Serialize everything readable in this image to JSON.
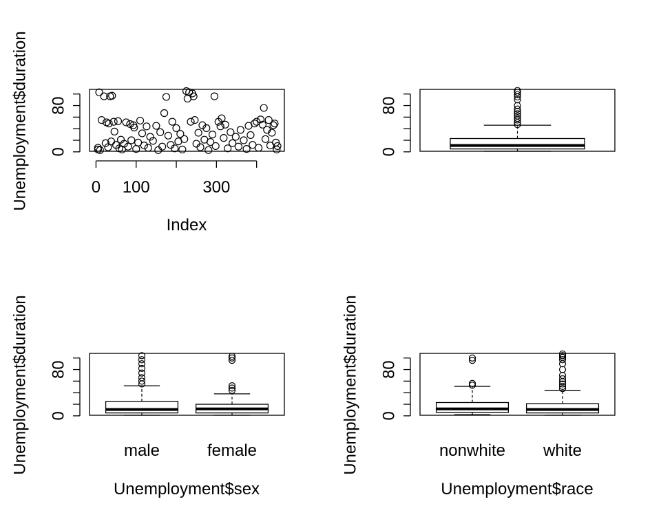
{
  "chart_data": [
    {
      "type": "scatter",
      "xlabel": "Index",
      "ylabel": "Unemployment$duration",
      "xlim": [
        1,
        452
      ],
      "ylim": [
        1,
        108
      ],
      "x_ticks": [
        0,
        100,
        200,
        300,
        400
      ],
      "x_tick_labels": [
        "0",
        "100",
        "",
        "300",
        ""
      ],
      "y_ticks": [
        0,
        20,
        40,
        60,
        80,
        100
      ],
      "y_tick_labels": [
        "0",
        "",
        "",
        "",
        "80",
        ""
      ],
      "points": [
        {
          "x": 5,
          "y": 4
        },
        {
          "x": 5,
          "y": 7
        },
        {
          "x": 8,
          "y": 103
        },
        {
          "x": 10,
          "y": 3
        },
        {
          "x": 14,
          "y": 55
        },
        {
          "x": 20,
          "y": 96
        },
        {
          "x": 24,
          "y": 15
        },
        {
          "x": 26,
          "y": 51
        },
        {
          "x": 30,
          "y": 8
        },
        {
          "x": 32,
          "y": 49
        },
        {
          "x": 35,
          "y": 96
        },
        {
          "x": 38,
          "y": 18
        },
        {
          "x": 40,
          "y": 97
        },
        {
          "x": 44,
          "y": 52
        },
        {
          "x": 46,
          "y": 35
        },
        {
          "x": 50,
          "y": 12
        },
        {
          "x": 55,
          "y": 53
        },
        {
          "x": 58,
          "y": 6
        },
        {
          "x": 62,
          "y": 21
        },
        {
          "x": 65,
          "y": 4
        },
        {
          "x": 70,
          "y": 14
        },
        {
          "x": 75,
          "y": 51
        },
        {
          "x": 80,
          "y": 9
        },
        {
          "x": 85,
          "y": 48
        },
        {
          "x": 88,
          "y": 20
        },
        {
          "x": 93,
          "y": 46
        },
        {
          "x": 95,
          "y": 42
        },
        {
          "x": 100,
          "y": 5
        },
        {
          "x": 105,
          "y": 16
        },
        {
          "x": 110,
          "y": 54
        },
        {
          "x": 115,
          "y": 32
        },
        {
          "x": 120,
          "y": 11
        },
        {
          "x": 126,
          "y": 44
        },
        {
          "x": 130,
          "y": 7
        },
        {
          "x": 135,
          "y": 26
        },
        {
          "x": 142,
          "y": 19
        },
        {
          "x": 150,
          "y": 45
        },
        {
          "x": 155,
          "y": 3
        },
        {
          "x": 160,
          "y": 34
        },
        {
          "x": 165,
          "y": 9
        },
        {
          "x": 170,
          "y": 67
        },
        {
          "x": 175,
          "y": 95
        },
        {
          "x": 180,
          "y": 28
        },
        {
          "x": 186,
          "y": 12
        },
        {
          "x": 190,
          "y": 52
        },
        {
          "x": 196,
          "y": 6
        },
        {
          "x": 200,
          "y": 41
        },
        {
          "x": 205,
          "y": 18
        },
        {
          "x": 210,
          "y": 31
        },
        {
          "x": 215,
          "y": 4
        },
        {
          "x": 220,
          "y": 22
        },
        {
          "x": 225,
          "y": 105
        },
        {
          "x": 228,
          "y": 92
        },
        {
          "x": 232,
          "y": 103
        },
        {
          "x": 236,
          "y": 52
        },
        {
          "x": 240,
          "y": 101
        },
        {
          "x": 243,
          "y": 96
        },
        {
          "x": 246,
          "y": 55
        },
        {
          "x": 250,
          "y": 14
        },
        {
          "x": 255,
          "y": 33
        },
        {
          "x": 260,
          "y": 8
        },
        {
          "x": 265,
          "y": 46
        },
        {
          "x": 270,
          "y": 21
        },
        {
          "x": 275,
          "y": 41
        },
        {
          "x": 280,
          "y": 3
        },
        {
          "x": 285,
          "y": 17
        },
        {
          "x": 290,
          "y": 30
        },
        {
          "x": 295,
          "y": 96
        },
        {
          "x": 298,
          "y": 10
        },
        {
          "x": 305,
          "y": 52
        },
        {
          "x": 310,
          "y": 44
        },
        {
          "x": 313,
          "y": 58
        },
        {
          "x": 318,
          "y": 24
        },
        {
          "x": 322,
          "y": 47
        },
        {
          "x": 328,
          "y": 6
        },
        {
          "x": 335,
          "y": 34
        },
        {
          "x": 340,
          "y": 15
        },
        {
          "x": 348,
          "y": 26
        },
        {
          "x": 355,
          "y": 9
        },
        {
          "x": 360,
          "y": 38
        },
        {
          "x": 368,
          "y": 20
        },
        {
          "x": 375,
          "y": 5
        },
        {
          "x": 380,
          "y": 45
        },
        {
          "x": 385,
          "y": 29
        },
        {
          "x": 390,
          "y": 12
        },
        {
          "x": 395,
          "y": 49
        },
        {
          "x": 400,
          "y": 52
        },
        {
          "x": 405,
          "y": 7
        },
        {
          "x": 410,
          "y": 56
        },
        {
          "x": 415,
          "y": 47
        },
        {
          "x": 418,
          "y": 76
        },
        {
          "x": 422,
          "y": 22
        },
        {
          "x": 426,
          "y": 38
        },
        {
          "x": 430,
          "y": 55
        },
        {
          "x": 434,
          "y": 11
        },
        {
          "x": 438,
          "y": 33
        },
        {
          "x": 442,
          "y": 46
        },
        {
          "x": 445,
          "y": 49
        },
        {
          "x": 448,
          "y": 16
        },
        {
          "x": 450,
          "y": 4
        },
        {
          "x": 452,
          "y": 10
        }
      ]
    },
    {
      "type": "box",
      "ylabel": "",
      "ylim": [
        1,
        108
      ],
      "y_ticks": [
        0,
        20,
        40,
        60,
        80,
        100
      ],
      "y_tick_labels": [
        "0",
        "",
        "",
        "",
        "80",
        ""
      ],
      "boxes": [
        {
          "name": "",
          "min": 1,
          "q1": 5,
          "median": 11,
          "q3": 23,
          "max": 46,
          "outliers": [
            47,
            51,
            55,
            58,
            62,
            66,
            70,
            74,
            80,
            90,
            95,
            99,
            103,
            106
          ]
        }
      ]
    },
    {
      "type": "box",
      "xlabel": "Unemployment$sex",
      "ylabel": "Unemployment$duration",
      "ylim": [
        1,
        108
      ],
      "y_ticks": [
        0,
        20,
        40,
        60,
        80,
        100
      ],
      "y_tick_labels": [
        "0",
        "",
        "",
        "",
        "80",
        ""
      ],
      "boxes": [
        {
          "name": "male",
          "min": 1,
          "q1": 5,
          "median": 11,
          "q3": 25,
          "max": 52,
          "outliers": [
            55,
            60,
            66,
            74,
            82,
            90,
            97,
            104
          ]
        },
        {
          "name": "female",
          "min": 1,
          "q1": 5,
          "median": 12,
          "q3": 20,
          "max": 38,
          "outliers": [
            44,
            48,
            52,
            96,
            100,
            103
          ]
        }
      ]
    },
    {
      "type": "box",
      "xlabel": "Unemployment$race",
      "ylabel": "Unemployment$duration",
      "ylim": [
        1,
        108
      ],
      "y_ticks": [
        0,
        20,
        40,
        60,
        80,
        100
      ],
      "y_tick_labels": [
        "0",
        "",
        "",
        "",
        "80",
        ""
      ],
      "boxes": [
        {
          "name": "nonwhite",
          "min": 2,
          "q1": 6,
          "median": 12,
          "q3": 23,
          "max": 51,
          "outliers": [
            53,
            56,
            96,
            100
          ]
        },
        {
          "name": "white",
          "min": 1,
          "q1": 5,
          "median": 11,
          "q3": 21,
          "max": 44,
          "outliers": [
            47,
            51,
            55,
            59,
            64,
            70,
            80,
            90,
            97,
            101,
            104,
            107
          ]
        }
      ]
    }
  ]
}
